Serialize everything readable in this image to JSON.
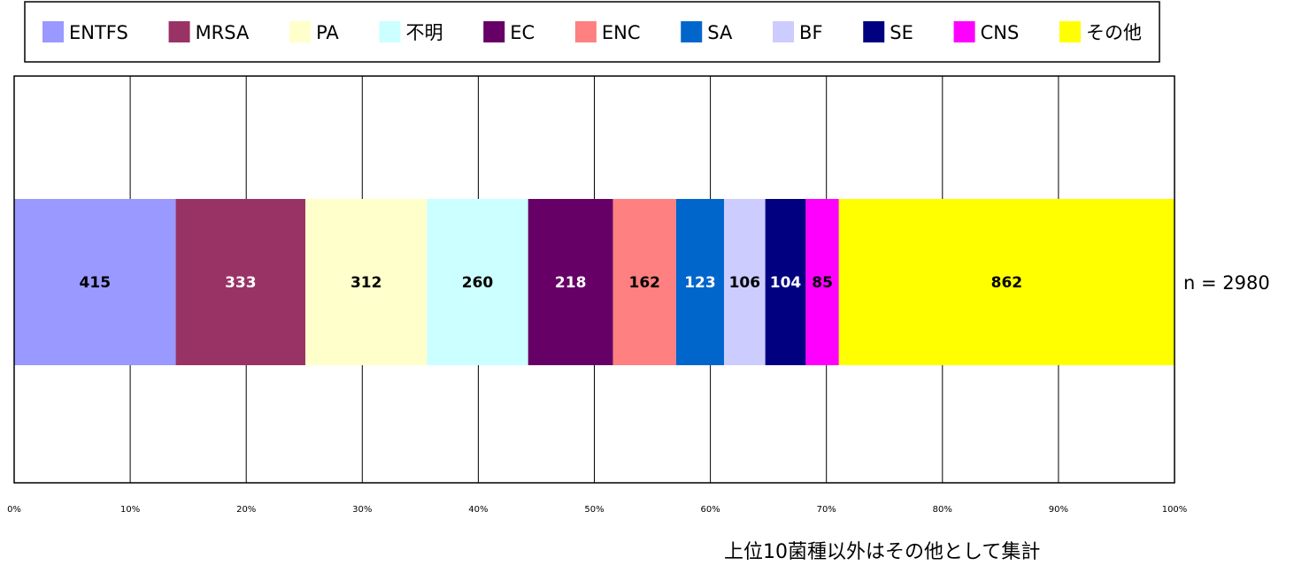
{
  "chart_data": {
    "type": "bar",
    "orientation": "horizontal",
    "stacked": "100%",
    "title": "",
    "xlabel": "",
    "ylabel": "",
    "xlim": [
      0,
      100
    ],
    "x_unit": "%",
    "grid": true,
    "legend_position": "top",
    "ticks": [
      "0%",
      "10%",
      "20%",
      "30%",
      "40%",
      "50%",
      "60%",
      "70%",
      "80%",
      "90%",
      "100%"
    ],
    "series": [
      {
        "name": "ENTFS",
        "values": [
          415
        ],
        "color": "#9999ff",
        "label_color": "#000000"
      },
      {
        "name": "MRSA",
        "values": [
          333
        ],
        "color": "#993366",
        "label_color": "#ffffff"
      },
      {
        "name": "PA",
        "values": [
          312
        ],
        "color": "#ffffcc",
        "label_color": "#000000"
      },
      {
        "name": "不明",
        "values": [
          260
        ],
        "color": "#ccffff",
        "label_color": "#000000"
      },
      {
        "name": "EC",
        "values": [
          218
        ],
        "color": "#660066",
        "label_color": "#ffffff"
      },
      {
        "name": "ENC",
        "values": [
          162
        ],
        "color": "#ff8080",
        "label_color": "#000000"
      },
      {
        "name": "SA",
        "values": [
          123
        ],
        "color": "#0066cc",
        "label_color": "#ffffff"
      },
      {
        "name": "BF",
        "values": [
          106
        ],
        "color": "#ccccff",
        "label_color": "#000000"
      },
      {
        "name": "SE",
        "values": [
          104
        ],
        "color": "#000080",
        "label_color": "#ffffff"
      },
      {
        "name": "CNS",
        "values": [
          85
        ],
        "color": "#ff00ff",
        "label_color": "#000000"
      },
      {
        "name": "その他",
        "values": [
          862
        ],
        "color": "#ffff00",
        "label_color": "#000000"
      }
    ],
    "total_label": "n = 2980",
    "footnote": "上位10菌種以外はその他として集計"
  }
}
